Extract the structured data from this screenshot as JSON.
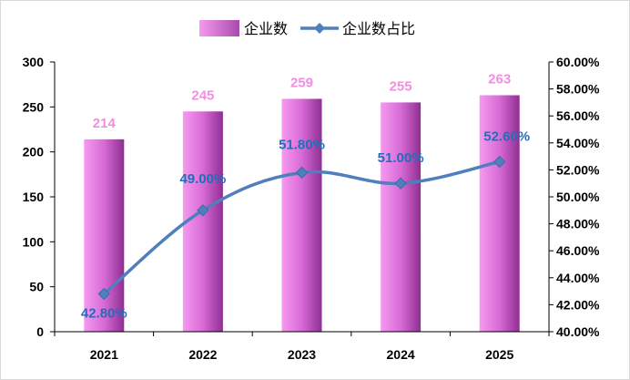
{
  "chart_data": {
    "type": "bar",
    "categories": [
      "2021",
      "2022",
      "2023",
      "2024",
      "2025"
    ],
    "series": [
      {
        "name": "企业数",
        "type": "bar",
        "axis": "left",
        "values": [
          214,
          245,
          259,
          255,
          263
        ],
        "labels": [
          "214",
          "245",
          "259",
          "255",
          "263"
        ]
      },
      {
        "name": "企业数占比",
        "type": "line",
        "axis": "right",
        "values": [
          42.8,
          49.0,
          51.8,
          51.0,
          52.6
        ],
        "labels": [
          "42.80%",
          "49.00%",
          "51.80%",
          "51.00%",
          "52.60%"
        ]
      }
    ],
    "left_axis": {
      "ylim": [
        0,
        300
      ],
      "ticks": [
        "0",
        "50",
        "100",
        "150",
        "200",
        "250",
        "300"
      ]
    },
    "right_axis": {
      "ylim": [
        40,
        60
      ],
      "ticks": [
        "40.00%",
        "42.00%",
        "44.00%",
        "46.00%",
        "48.00%",
        "50.00%",
        "52.00%",
        "54.00%",
        "56.00%",
        "58.00%",
        "60.00%"
      ]
    },
    "legend_position": "top-center",
    "grid": false,
    "colors": {
      "bar_light": "#f59af0",
      "bar_dark": "#8e2f93",
      "line": "#4f7fbd",
      "bar_label": "#f08ee0",
      "line_label": "#1f6fb8"
    }
  }
}
